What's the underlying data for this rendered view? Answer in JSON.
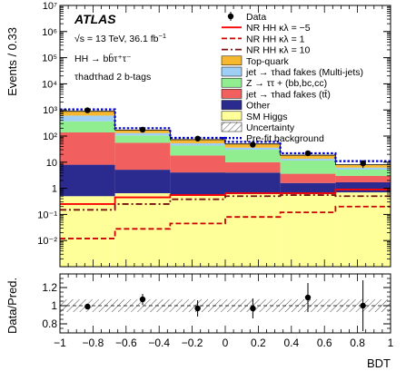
{
  "chart_data": {
    "type": "bar",
    "experiment": "ATLAS",
    "energy_text": "√s = 13 TeV, 36.1 fb",
    "lumi_sup": "−1",
    "process_text": "HH → bb̄τ⁺τ⁻",
    "channel_text": "τhadτhad 2 b-tags",
    "ylabel": "Events / 0.33",
    "xlabel": "BDT",
    "ratio_ylabel": "Data/Pred.",
    "xlim": [
      -1,
      1
    ],
    "ylim": [
      0.001,
      10000000
    ],
    "ylog": true,
    "ratio_ylim": [
      0.7,
      1.35
    ],
    "bin_edges": [
      -1.0,
      -0.667,
      -0.333,
      0.0,
      0.333,
      0.667,
      1.0
    ],
    "x_ticks": [
      "−1",
      "−0.8",
      "−0.6",
      "−0.4",
      "−0.2",
      "0",
      "0.2",
      "0.4",
      "0.6",
      "0.8",
      "1"
    ],
    "x_tick_values": [
      -1,
      -0.8,
      -0.6,
      -0.4,
      -0.2,
      0,
      0.2,
      0.4,
      0.6,
      0.8,
      1
    ],
    "y_ticks": [
      "10⁻²",
      "10⁻¹",
      "1",
      "10",
      "10²",
      "10³",
      "10⁴",
      "10⁵",
      "10⁶",
      "10⁷"
    ],
    "y_tick_values": [
      0.01,
      0.1,
      1,
      10,
      100,
      1000,
      10000,
      100000,
      1000000,
      10000000
    ],
    "ratio_ticks": [
      "0.8",
      "1",
      "1.2"
    ],
    "ratio_tick_values": [
      0.8,
      1.0,
      1.2
    ],
    "stack": [
      {
        "name": "SM Higgs",
        "color": "#ffff99",
        "values": [
          0.5,
          0.65,
          0.55,
          0.6,
          0.6,
          0.7
        ]
      },
      {
        "name": "Other",
        "color": "#2b2b8f",
        "values": [
          7.5,
          4.5,
          3.5,
          3.4,
          1.0,
          1.0
        ]
      },
      {
        "name": "jet → τhad fakes (tt̄)",
        "color": "#f25f5f",
        "values": [
          130,
          50,
          14,
          6,
          2,
          1.3
        ]
      },
      {
        "name": "Z → ττ + (bb,bc,cc)",
        "color": "#90ee90",
        "values": [
          230,
          50,
          25,
          20,
          8,
          2.2
        ]
      },
      {
        "name": "jet → τhad fakes (Multi-jets)",
        "color": "#9fcff5",
        "values": [
          240,
          25,
          10,
          6,
          2,
          1.0
        ]
      },
      {
        "name": "Top-quark",
        "color": "#f5b82e",
        "values": [
          280,
          40,
          20,
          14,
          5,
          1.8
        ]
      }
    ],
    "prefit": [
      1050,
      200,
      85,
      60,
      22,
      11
    ],
    "data": [
      970,
      175,
      80,
      47,
      22,
      9
    ],
    "data_err": [
      31,
      13,
      9,
      7,
      4.7,
      3
    ],
    "signals": [
      {
        "name": "NR HH κλ = −5",
        "color": "#ff0000",
        "dash": "solid",
        "values": [
          0.25,
          0.45,
          0.55,
          0.65,
          0.65,
          0.9
        ]
      },
      {
        "name": "NR HH κλ = 1",
        "color": "#cc0000",
        "dash": "dashed",
        "values": [
          0.012,
          0.028,
          0.045,
          0.08,
          0.12,
          0.2
        ]
      },
      {
        "name": "NR HH κλ = 10",
        "color": "#7a1010",
        "dash": "dashdot",
        "values": [
          0.15,
          0.25,
          0.38,
          0.5,
          0.55,
          0.5
        ]
      }
    ],
    "ratio_points": {
      "x": [
        -0.833,
        -0.5,
        -0.167,
        0.167,
        0.5,
        0.833
      ],
      "y": [
        0.99,
        1.07,
        0.97,
        0.97,
        1.09,
        1.0
      ],
      "err": [
        0.02,
        0.06,
        0.09,
        0.11,
        0.16,
        0.28
      ]
    },
    "uncertainty_band": {
      "low": 0.93,
      "high": 1.07
    },
    "legend": {
      "position": "top-right",
      "entries": [
        {
          "label": "Data",
          "kind": "marker"
        },
        {
          "label": "NR HH κλ = −5",
          "kind": "line",
          "color": "#ff0000",
          "dash": "solid"
        },
        {
          "label": "NR HH κλ = 1",
          "kind": "line",
          "color": "#cc0000",
          "dash": "dashed"
        },
        {
          "label": "NR HH κλ = 10",
          "kind": "line",
          "color": "#7a1010",
          "dash": "dashdot"
        },
        {
          "label": "Top-quark",
          "kind": "box",
          "color": "#f5b82e"
        },
        {
          "label": "jet → τhad fakes (Multi-jets)",
          "kind": "box",
          "color": "#9fcff5"
        },
        {
          "label": "Z → ττ + (bb,bc,cc)",
          "kind": "box",
          "color": "#90ee90"
        },
        {
          "label": "jet → τhad fakes (tt̄)",
          "kind": "box",
          "color": "#f25f5f"
        },
        {
          "label": "Other",
          "kind": "box",
          "color": "#2b2b8f"
        },
        {
          "label": "SM Higgs",
          "kind": "box",
          "color": "#ffff99"
        },
        {
          "label": "Uncertainty",
          "kind": "hatch"
        },
        {
          "label": "Pre-fit background",
          "kind": "line",
          "color": "#0000cc",
          "dash": "dotted"
        }
      ]
    }
  }
}
